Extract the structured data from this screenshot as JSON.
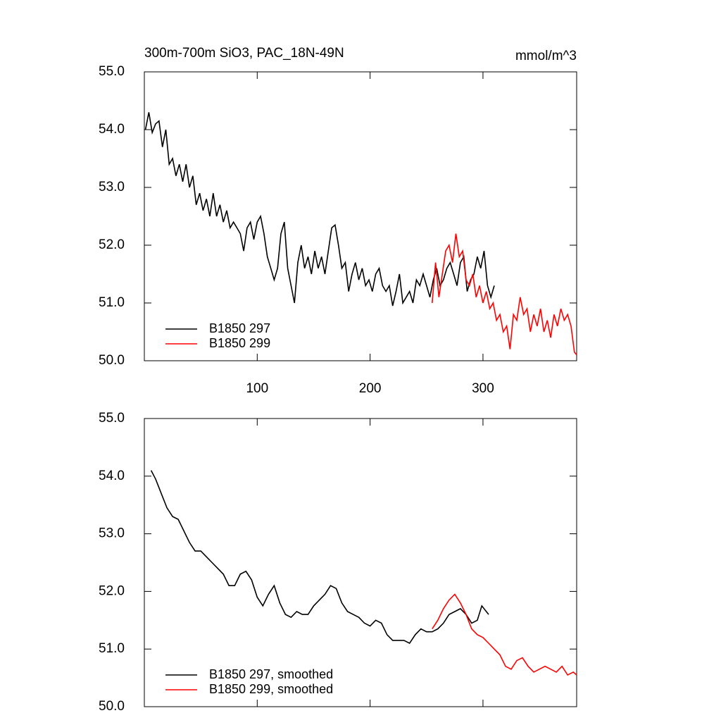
{
  "chart_data": [
    {
      "type": "line",
      "title": "300m-700m SiO3, PAC_18N-49N",
      "units": "mmol/m^3",
      "xlim": [
        0,
        383
      ],
      "xticks": [
        100,
        200,
        300
      ],
      "ylim": [
        50,
        55
      ],
      "yticks": [
        {
          "value": 50,
          "label": "50.0"
        },
        {
          "value": 51,
          "label": "51.0"
        },
        {
          "value": 52,
          "label": "52.0"
        },
        {
          "value": 53,
          "label": "53.0"
        },
        {
          "value": 54,
          "label": "54.0"
        },
        {
          "value": 55,
          "label": "55.0"
        }
      ],
      "legend": "lower left",
      "series": [
        {
          "name": "B1850 297",
          "color": "#000000",
          "x": [
            1,
            4,
            7,
            10,
            13,
            16,
            19,
            22,
            25,
            28,
            31,
            34,
            37,
            40,
            43,
            46,
            49,
            52,
            55,
            58,
            61,
            64,
            67,
            70,
            73,
            76,
            79,
            82,
            85,
            88,
            91,
            94,
            97,
            100,
            103,
            106,
            109,
            112,
            115,
            118,
            121,
            124,
            127,
            130,
            133,
            136,
            139,
            142,
            145,
            148,
            151,
            154,
            157,
            160,
            163,
            166,
            169,
            172,
            175,
            178,
            181,
            184,
            187,
            190,
            193,
            196,
            199,
            202,
            205,
            208,
            211,
            214,
            217,
            220,
            223,
            226,
            229,
            232,
            235,
            238,
            241,
            244,
            247,
            250,
            253,
            256,
            259,
            262,
            265,
            268,
            271,
            274,
            277,
            280,
            283,
            286,
            289,
            292,
            295,
            298,
            301,
            304,
            307,
            310
          ],
          "values": [
            54.0,
            54.3,
            53.95,
            54.1,
            54.15,
            53.7,
            54.0,
            53.4,
            53.5,
            53.2,
            53.4,
            53.1,
            53.4,
            53.0,
            53.2,
            52.7,
            52.9,
            52.6,
            52.8,
            52.5,
            52.9,
            52.5,
            52.7,
            52.4,
            52.6,
            52.3,
            52.4,
            52.3,
            52.2,
            51.9,
            52.3,
            52.4,
            52.1,
            52.4,
            52.5,
            52.2,
            51.8,
            51.6,
            51.4,
            51.6,
            52.2,
            52.4,
            51.6,
            51.3,
            51.0,
            51.7,
            52.0,
            51.6,
            51.8,
            51.5,
            51.9,
            51.6,
            51.8,
            51.5,
            51.9,
            52.3,
            52.35,
            52.0,
            51.6,
            51.7,
            51.2,
            51.5,
            51.7,
            51.4,
            51.6,
            51.3,
            51.4,
            51.2,
            51.5,
            51.6,
            51.3,
            51.2,
            51.3,
            50.95,
            51.2,
            51.5,
            51.0,
            51.1,
            51.2,
            51.0,
            51.4,
            51.3,
            51.5,
            51.3,
            51.1,
            51.4,
            51.6,
            51.3,
            51.4,
            51.6,
            51.7,
            51.5,
            51.3,
            51.7,
            51.8,
            51.2,
            51.4,
            51.5,
            51.8,
            51.6,
            51.9,
            51.3,
            51.1,
            51.3
          ]
        },
        {
          "name": "B1850 299",
          "color": "#ff0000",
          "x": [
            255,
            258,
            261,
            264,
            267,
            270,
            273,
            276,
            279,
            282,
            285,
            288,
            291,
            294,
            297,
            300,
            303,
            306,
            309,
            312,
            315,
            318,
            321,
            324,
            327,
            330,
            333,
            336,
            339,
            342,
            345,
            348,
            351,
            354,
            357,
            360,
            363,
            366,
            369,
            372,
            375,
            378,
            381,
            383
          ],
          "values": [
            51.0,
            51.7,
            51.1,
            51.5,
            51.9,
            52.0,
            51.7,
            52.2,
            51.8,
            51.9,
            51.4,
            51.3,
            51.5,
            51.1,
            51.3,
            51.0,
            51.2,
            50.9,
            51.0,
            50.7,
            50.8,
            50.5,
            50.6,
            50.2,
            50.8,
            50.7,
            51.1,
            50.8,
            50.9,
            50.5,
            50.8,
            50.6,
            50.9,
            50.5,
            50.7,
            50.4,
            50.8,
            50.6,
            50.9,
            50.7,
            50.8,
            50.6,
            50.15,
            50.1
          ]
        }
      ]
    },
    {
      "type": "line",
      "xlim": [
        0,
        383
      ],
      "xticks": [
        100,
        200,
        300
      ],
      "ylim": [
        50,
        55
      ],
      "yticks": [
        {
          "value": 50,
          "label": "50.0"
        },
        {
          "value": 51,
          "label": "51.0"
        },
        {
          "value": 52,
          "label": "52.0"
        },
        {
          "value": 53,
          "label": "53.0"
        },
        {
          "value": 54,
          "label": "54.0"
        },
        {
          "value": 55,
          "label": "55.0"
        }
      ],
      "legend": "lower left",
      "series": [
        {
          "name": "B1850 297, smoothed",
          "color": "#000000",
          "x": [
            6,
            10,
            15,
            20,
            25,
            30,
            35,
            40,
            45,
            50,
            55,
            60,
            65,
            70,
            75,
            80,
            85,
            90,
            95,
            100,
            105,
            110,
            115,
            120,
            125,
            130,
            135,
            140,
            145,
            150,
            155,
            160,
            165,
            170,
            175,
            180,
            185,
            190,
            195,
            200,
            205,
            210,
            215,
            220,
            225,
            230,
            235,
            240,
            245,
            250,
            255,
            260,
            265,
            270,
            275,
            280,
            285,
            290,
            295,
            299,
            303,
            305
          ],
          "values": [
            54.1,
            53.95,
            53.7,
            53.45,
            53.3,
            53.25,
            53.05,
            52.85,
            52.7,
            52.7,
            52.6,
            52.5,
            52.4,
            52.3,
            52.1,
            52.1,
            52.3,
            52.35,
            52.2,
            51.9,
            51.75,
            51.95,
            52.1,
            51.8,
            51.6,
            51.55,
            51.65,
            51.6,
            51.6,
            51.75,
            51.85,
            51.95,
            52.1,
            52.05,
            51.8,
            51.65,
            51.6,
            51.55,
            51.45,
            51.4,
            51.5,
            51.45,
            51.25,
            51.15,
            51.15,
            51.15,
            51.1,
            51.25,
            51.35,
            51.3,
            51.3,
            51.35,
            51.45,
            51.6,
            51.65,
            51.7,
            51.6,
            51.45,
            51.5,
            51.75,
            51.65,
            51.6
          ]
        },
        {
          "name": "B1850 299, smoothed",
          "color": "#ff0000",
          "x": [
            255,
            260,
            265,
            270,
            275,
            280,
            285,
            290,
            295,
            300,
            305,
            310,
            315,
            320,
            325,
            330,
            335,
            340,
            345,
            350,
            355,
            360,
            365,
            370,
            375,
            380,
            383
          ],
          "values": [
            51.35,
            51.5,
            51.7,
            51.85,
            51.95,
            51.8,
            51.6,
            51.35,
            51.25,
            51.2,
            51.1,
            51.0,
            50.9,
            50.7,
            50.65,
            50.8,
            50.85,
            50.7,
            50.6,
            50.65,
            50.7,
            50.65,
            50.6,
            50.7,
            50.55,
            50.6,
            50.55
          ]
        }
      ]
    }
  ]
}
